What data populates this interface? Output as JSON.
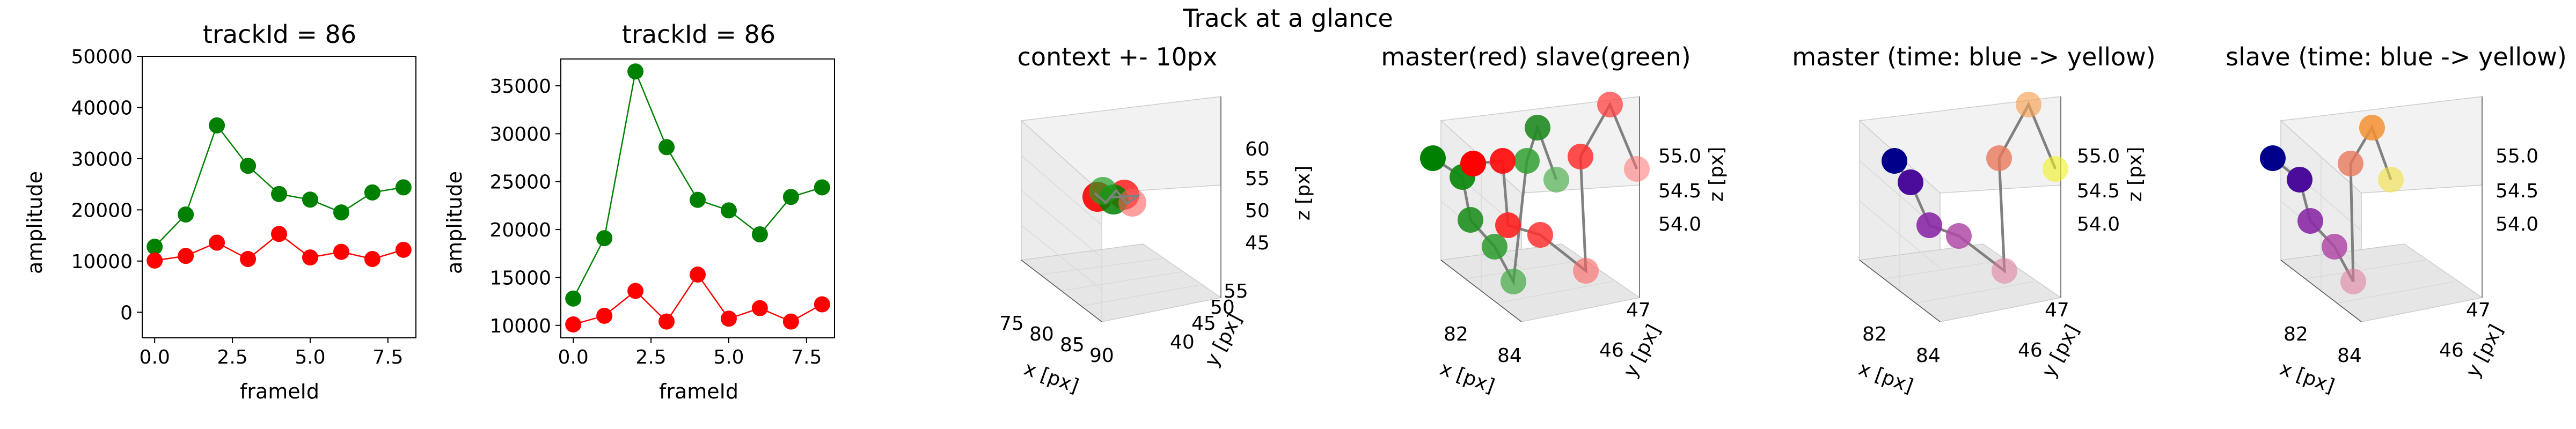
{
  "suptitle": "Track at a glance",
  "chart_data": [
    {
      "type": "line",
      "title": "trackId = 86",
      "xlabel": "frameId",
      "ylabel": "amplitude",
      "xlim": [
        -0.4,
        8.4
      ],
      "ylim": [
        -5000,
        50000
      ],
      "xticks": [
        0,
        2.5,
        5,
        7.5
      ],
      "xtick_labels": [
        "0.0",
        "2.5",
        "5.0",
        "7.5"
      ],
      "yticks": [
        0,
        10000,
        20000,
        30000,
        40000,
        50000
      ],
      "ytick_labels": [
        "0",
        "10000",
        "20000",
        "30000",
        "40000",
        "50000"
      ],
      "x": [
        0,
        1,
        2,
        3,
        4,
        5,
        6,
        7,
        8
      ],
      "series": [
        {
          "color": "#008000",
          "values": [
            12800,
            19100,
            36500,
            28600,
            23100,
            22000,
            19500,
            23400,
            24400
          ]
        },
        {
          "color": "#ff0000",
          "values": [
            10100,
            11000,
            13600,
            10400,
            15300,
            10700,
            11800,
            10400,
            12200
          ]
        }
      ]
    },
    {
      "type": "line",
      "title": "trackId = 86",
      "xlabel": "frameId",
      "ylabel": "amplitude",
      "xlim": [
        -0.4,
        8.4
      ],
      "ylim": [
        8700,
        37800
      ],
      "xticks": [
        0,
        2.5,
        5,
        7.5
      ],
      "xtick_labels": [
        "0.0",
        "2.5",
        "5.0",
        "7.5"
      ],
      "yticks": [
        10000,
        15000,
        20000,
        25000,
        30000,
        35000
      ],
      "ytick_labels": [
        "10000",
        "15000",
        "20000",
        "25000",
        "30000",
        "35000"
      ],
      "x": [
        0,
        1,
        2,
        3,
        4,
        5,
        6,
        7,
        8
      ],
      "series": [
        {
          "color": "#008000",
          "values": [
            12800,
            19100,
            36500,
            28600,
            23100,
            22000,
            19500,
            23400,
            24400
          ]
        },
        {
          "color": "#ff0000",
          "values": [
            10100,
            11000,
            13600,
            10400,
            15300,
            10700,
            11800,
            10400,
            12200
          ]
        }
      ]
    },
    {
      "type": "scatter",
      "title": "context +- 10px",
      "xlabel": "x [px]",
      "ylabel": "y [px]",
      "zlabel": "z [px]",
      "xtick_labels": [
        "75",
        "80",
        "85",
        "90"
      ],
      "ytick_labels": [
        "40",
        "45",
        "50",
        "55"
      ],
      "ztick_labels": [
        "45",
        "50",
        "55",
        "60"
      ]
    },
    {
      "type": "scatter",
      "title": "master(red) slave(green)",
      "xlabel": "x [px]",
      "ylabel": "y [px]",
      "zlabel": "z [px]",
      "xtick_labels": [
        "82",
        "84"
      ],
      "ytick_labels": [
        "46",
        "47"
      ],
      "ztick_labels": [
        "54.0",
        "54.5",
        "55.0"
      ]
    },
    {
      "type": "scatter",
      "title": "master (time: blue -> yellow)",
      "xlabel": "x [px]",
      "ylabel": "y [px]",
      "zlabel": "z [px]",
      "xtick_labels": [
        "82",
        "84"
      ],
      "ytick_labels": [
        "46",
        "47"
      ],
      "ztick_labels": [
        "54.0",
        "54.5",
        "55.0"
      ]
    },
    {
      "type": "scatter",
      "title": "slave (time: blue -> yellow)",
      "xlabel": "x [px]",
      "ylabel": "y [px]",
      "zlabel": "z [px]",
      "xtick_labels": [
        "82",
        "84"
      ],
      "ytick_labels": [
        "46",
        "47"
      ],
      "ztick_labels": [
        "54.0",
        "54.5",
        "55.0"
      ]
    }
  ]
}
